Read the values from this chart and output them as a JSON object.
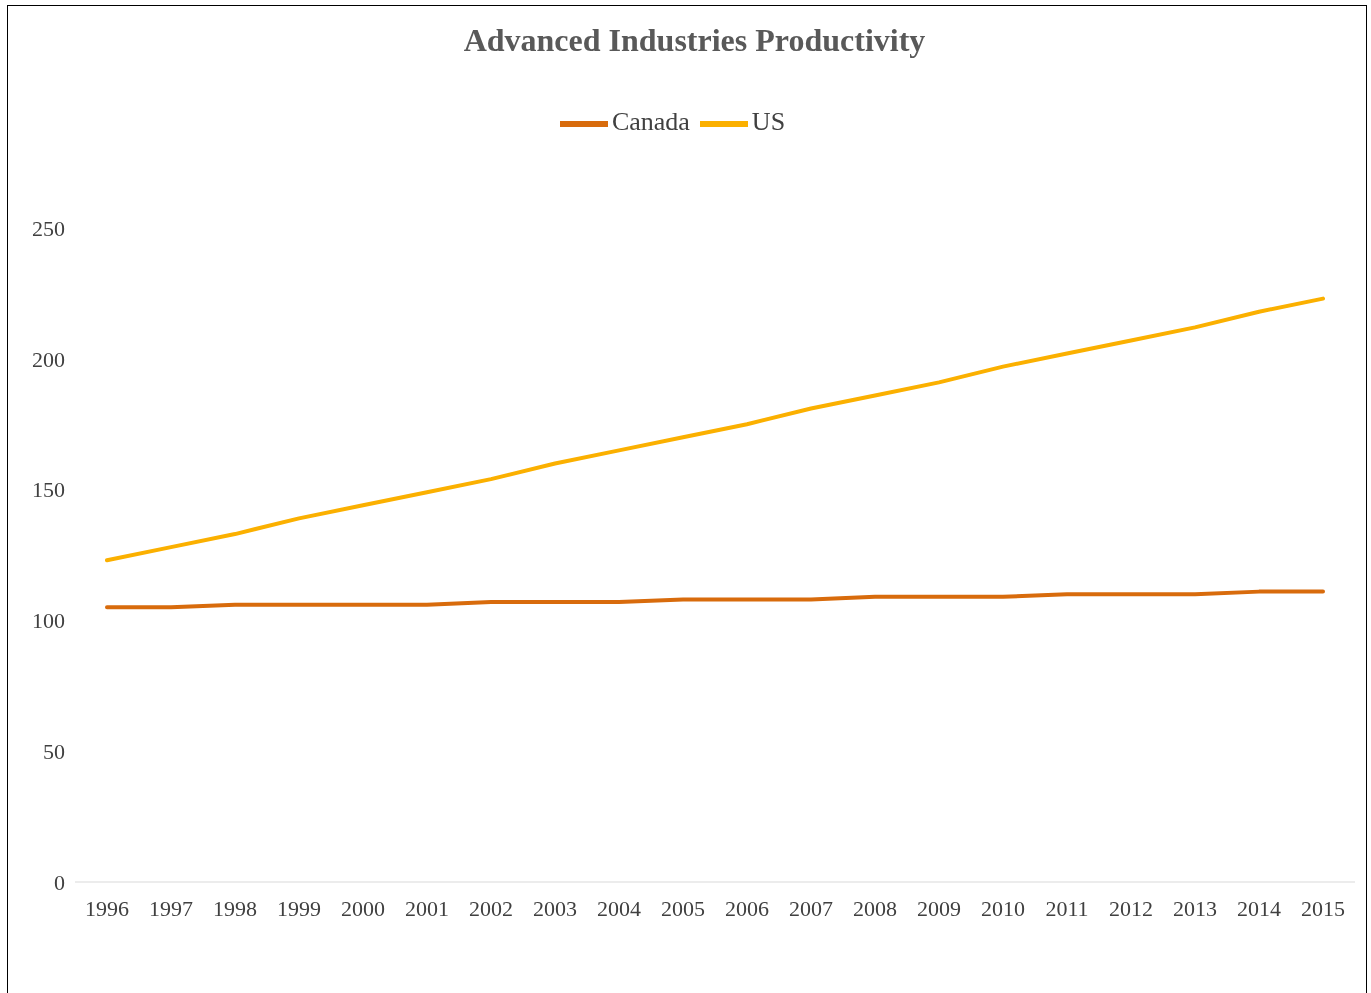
{
  "chart_data": {
    "type": "line",
    "title": "Advanced Industries Productivity",
    "categories": [
      "1996",
      "1997",
      "1998",
      "1999",
      "2000",
      "2001",
      "2002",
      "2003",
      "2004",
      "2005",
      "2006",
      "2007",
      "2008",
      "2009",
      "2010",
      "2011",
      "2012",
      "2013",
      "2014",
      "2015"
    ],
    "series": [
      {
        "name": "Canada",
        "color": "#d86b0c",
        "values": [
          105,
          105,
          106,
          106,
          106,
          106,
          107,
          107,
          107,
          108,
          108,
          108,
          109,
          109,
          109,
          110,
          110,
          110,
          111,
          111
        ]
      },
      {
        "name": "US",
        "color": "#fbb000",
        "values": [
          123,
          128,
          133,
          139,
          144,
          149,
          154,
          160,
          165,
          170,
          175,
          181,
          186,
          191,
          197,
          202,
          207,
          212,
          218,
          223
        ]
      }
    ],
    "ylim": [
      0,
      250
    ],
    "yticks": [
      0,
      50,
      100,
      150,
      200,
      250
    ],
    "grid": false,
    "legend": "top",
    "marker": "none",
    "line_style": "solid"
  }
}
